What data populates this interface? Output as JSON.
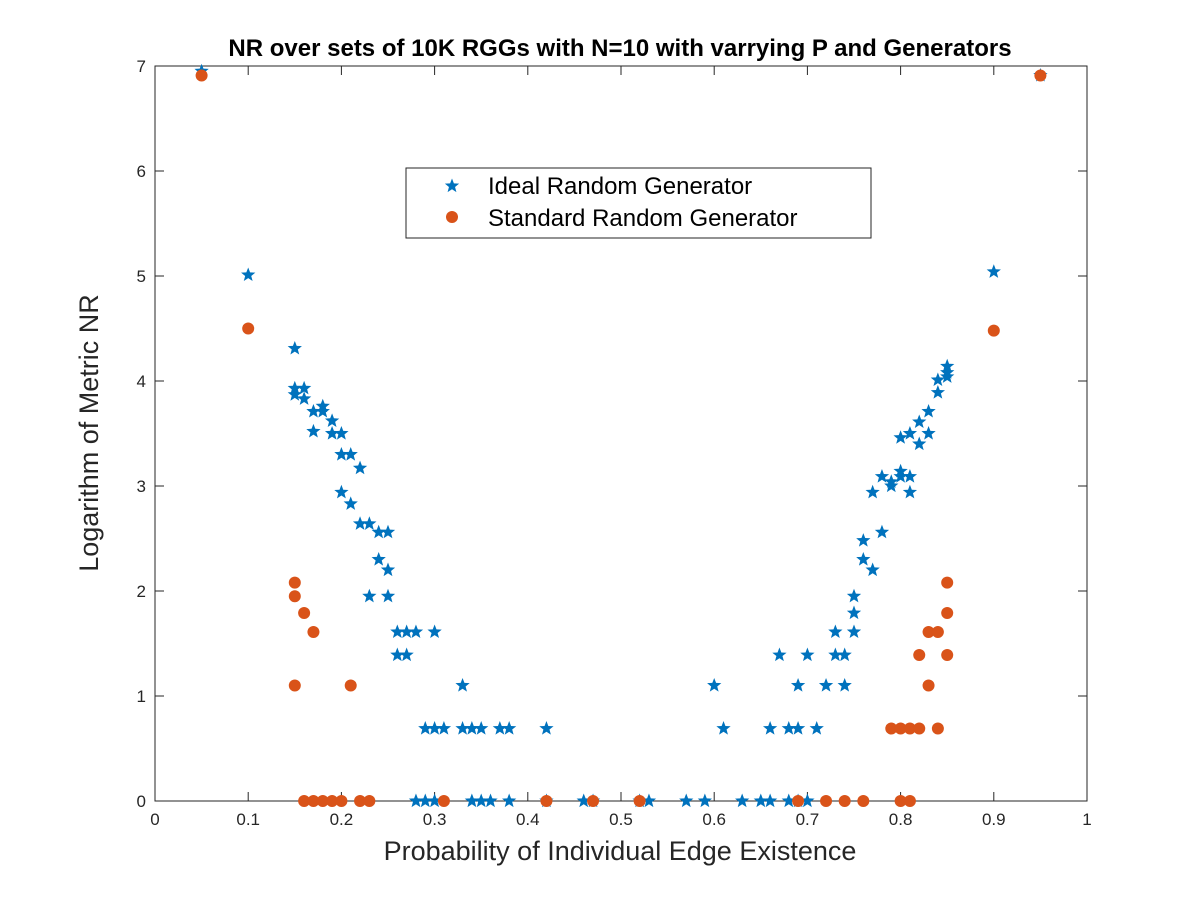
{
  "chart_data": {
    "type": "scatter",
    "title": "NR over sets of 10K RGGs with N=10 with varrying P and Generators",
    "xlabel": "Probability of Individual Edge Existence",
    "ylabel": "Logarithm of Metric NR",
    "xlim": [
      0,
      1
    ],
    "ylim": [
      0,
      7
    ],
    "xticks": [
      "0",
      "0.1",
      "0.2",
      "0.3",
      "0.4",
      "0.5",
      "0.6",
      "0.7",
      "0.8",
      "0.9",
      "1"
    ],
    "yticks": [
      "0",
      "1",
      "2",
      "3",
      "4",
      "5",
      "6",
      "7"
    ],
    "grid": false,
    "legend_position": "top-center",
    "series": [
      {
        "name": "Ideal Random Generator",
        "marker": "star",
        "color": "#0072bd",
        "points": [
          [
            0.05,
            6.95
          ],
          [
            0.1,
            5.01
          ],
          [
            0.15,
            4.31
          ],
          [
            0.15,
            3.93
          ],
          [
            0.15,
            3.87
          ],
          [
            0.16,
            3.93
          ],
          [
            0.16,
            3.83
          ],
          [
            0.17,
            3.71
          ],
          [
            0.17,
            3.52
          ],
          [
            0.18,
            3.76
          ],
          [
            0.18,
            3.71
          ],
          [
            0.19,
            3.62
          ],
          [
            0.19,
            3.5
          ],
          [
            0.2,
            3.5
          ],
          [
            0.2,
            3.3
          ],
          [
            0.2,
            2.94
          ],
          [
            0.21,
            3.3
          ],
          [
            0.21,
            2.83
          ],
          [
            0.22,
            3.17
          ],
          [
            0.22,
            2.64
          ],
          [
            0.23,
            2.64
          ],
          [
            0.23,
            1.95
          ],
          [
            0.24,
            2.56
          ],
          [
            0.24,
            2.3
          ],
          [
            0.25,
            2.56
          ],
          [
            0.25,
            2.2
          ],
          [
            0.25,
            1.95
          ],
          [
            0.26,
            1.61
          ],
          [
            0.26,
            1.39
          ],
          [
            0.27,
            1.61
          ],
          [
            0.27,
            1.39
          ],
          [
            0.28,
            1.61
          ],
          [
            0.28,
            0.0
          ],
          [
            0.29,
            0.69
          ],
          [
            0.29,
            0.0
          ],
          [
            0.3,
            0.69
          ],
          [
            0.3,
            1.61
          ],
          [
            0.3,
            0.0
          ],
          [
            0.31,
            0.69
          ],
          [
            0.33,
            1.1
          ],
          [
            0.33,
            0.69
          ],
          [
            0.34,
            0.69
          ],
          [
            0.34,
            0.0
          ],
          [
            0.35,
            0.69
          ],
          [
            0.35,
            0.0
          ],
          [
            0.36,
            0.0
          ],
          [
            0.37,
            0.69
          ],
          [
            0.38,
            0.69
          ],
          [
            0.38,
            0.0
          ],
          [
            0.42,
            0.69
          ],
          [
            0.42,
            0.0
          ],
          [
            0.46,
            0.0
          ],
          [
            0.47,
            0.0
          ],
          [
            0.52,
            0.0
          ],
          [
            0.53,
            0.0
          ],
          [
            0.57,
            0.0
          ],
          [
            0.59,
            0.0
          ],
          [
            0.6,
            1.1
          ],
          [
            0.61,
            0.69
          ],
          [
            0.63,
            0.0
          ],
          [
            0.65,
            0.0
          ],
          [
            0.66,
            0.69
          ],
          [
            0.66,
            0.0
          ],
          [
            0.67,
            1.39
          ],
          [
            0.68,
            0.69
          ],
          [
            0.68,
            0.0
          ],
          [
            0.69,
            1.1
          ],
          [
            0.69,
            0.69
          ],
          [
            0.69,
            0.0
          ],
          [
            0.7,
            1.39
          ],
          [
            0.7,
            0.0
          ],
          [
            0.71,
            0.69
          ],
          [
            0.72,
            1.1
          ],
          [
            0.73,
            1.61
          ],
          [
            0.73,
            1.39
          ],
          [
            0.74,
            1.39
          ],
          [
            0.74,
            1.1
          ],
          [
            0.75,
            1.95
          ],
          [
            0.75,
            1.79
          ],
          [
            0.75,
            1.61
          ],
          [
            0.76,
            2.48
          ],
          [
            0.76,
            2.3
          ],
          [
            0.77,
            2.94
          ],
          [
            0.77,
            2.2
          ],
          [
            0.78,
            3.09
          ],
          [
            0.78,
            2.56
          ],
          [
            0.79,
            3.04
          ],
          [
            0.79,
            3.0
          ],
          [
            0.8,
            3.46
          ],
          [
            0.8,
            3.14
          ],
          [
            0.8,
            3.09
          ],
          [
            0.81,
            3.09
          ],
          [
            0.81,
            2.94
          ],
          [
            0.81,
            3.5
          ],
          [
            0.82,
            3.61
          ],
          [
            0.82,
            3.4
          ],
          [
            0.83,
            3.71
          ],
          [
            0.83,
            3.5
          ],
          [
            0.84,
            4.01
          ],
          [
            0.84,
            3.89
          ],
          [
            0.85,
            4.14
          ],
          [
            0.85,
            4.08
          ],
          [
            0.85,
            4.04
          ],
          [
            0.9,
            5.04
          ],
          [
            0.95,
            6.91
          ]
        ]
      },
      {
        "name": "Standard Random Generator",
        "marker": "circle",
        "color": "#d95319",
        "points": [
          [
            0.05,
            6.91
          ],
          [
            0.1,
            4.5
          ],
          [
            0.15,
            2.08
          ],
          [
            0.15,
            1.95
          ],
          [
            0.15,
            1.1
          ],
          [
            0.16,
            1.79
          ],
          [
            0.16,
            0.0
          ],
          [
            0.17,
            1.61
          ],
          [
            0.17,
            0.0
          ],
          [
            0.18,
            0.0
          ],
          [
            0.19,
            0.0
          ],
          [
            0.2,
            0.0
          ],
          [
            0.21,
            1.1
          ],
          [
            0.22,
            0.0
          ],
          [
            0.23,
            0.0
          ],
          [
            0.31,
            0.0
          ],
          [
            0.42,
            0.0
          ],
          [
            0.47,
            0.0
          ],
          [
            0.52,
            0.0
          ],
          [
            0.69,
            0.0
          ],
          [
            0.72,
            0.0
          ],
          [
            0.74,
            0.0
          ],
          [
            0.76,
            0.0
          ],
          [
            0.79,
            0.69
          ],
          [
            0.8,
            0.69
          ],
          [
            0.8,
            0.0
          ],
          [
            0.81,
            0.69
          ],
          [
            0.81,
            0.0
          ],
          [
            0.82,
            0.69
          ],
          [
            0.82,
            1.39
          ],
          [
            0.83,
            1.61
          ],
          [
            0.83,
            1.1
          ],
          [
            0.84,
            1.61
          ],
          [
            0.84,
            0.69
          ],
          [
            0.85,
            2.08
          ],
          [
            0.85,
            1.79
          ],
          [
            0.85,
            1.39
          ],
          [
            0.9,
            4.48
          ],
          [
            0.95,
            6.91
          ]
        ]
      }
    ]
  }
}
